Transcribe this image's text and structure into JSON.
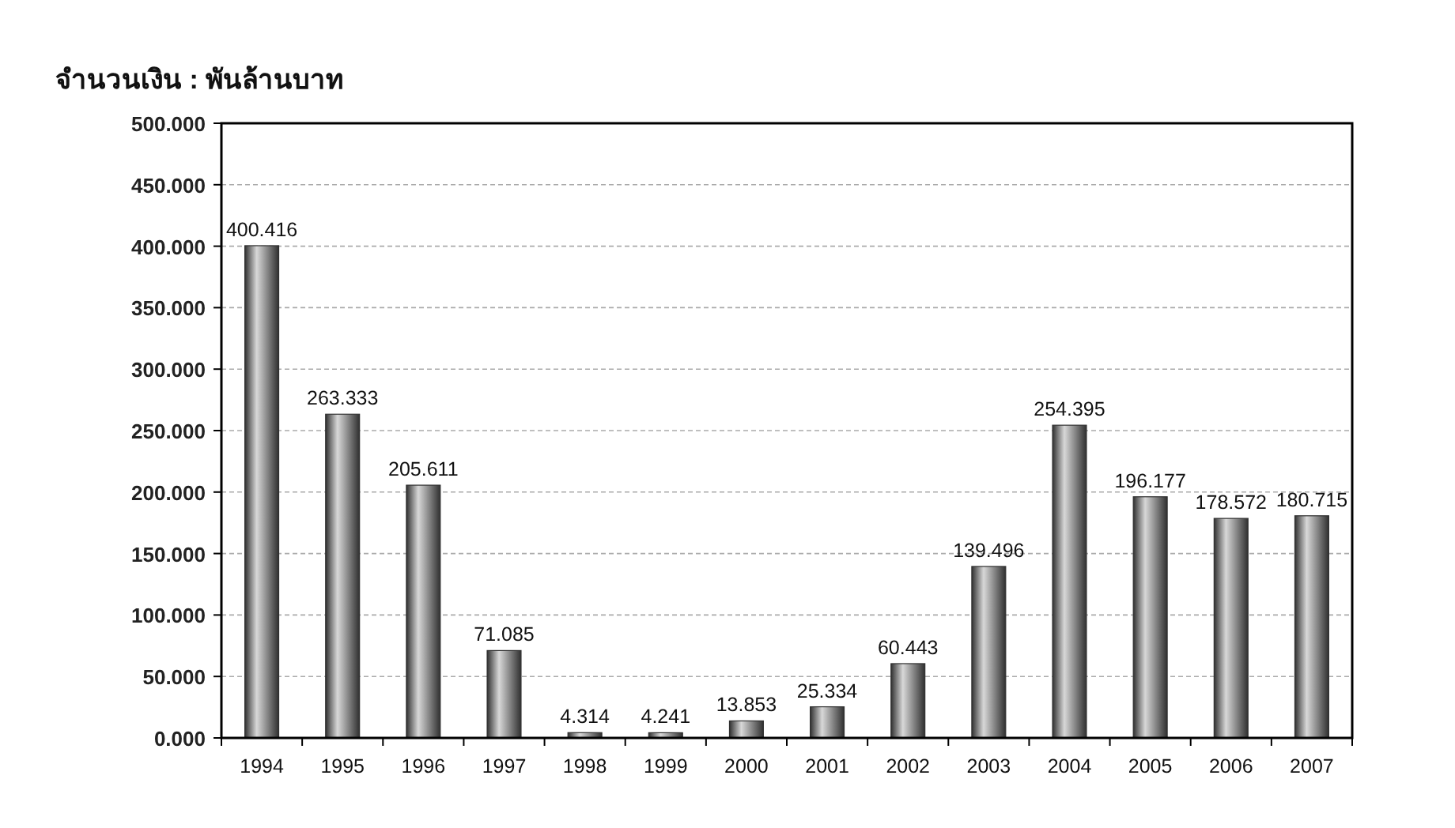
{
  "chart_data": {
    "type": "bar",
    "title": "จำนวนเงิน : พันล้านบาท",
    "categories": [
      "1994",
      "1995",
      "1996",
      "1997",
      "1998",
      "1999",
      "2000",
      "2001",
      "2002",
      "2003",
      "2004",
      "2005",
      "2006",
      "2007"
    ],
    "values": [
      400.416,
      263.333,
      205.611,
      71.085,
      4.314,
      4.241,
      13.853,
      25.334,
      60.443,
      139.496,
      254.395,
      196.177,
      178.572,
      180.715
    ],
    "color": "#303030",
    "ylim": [
      0,
      500
    ],
    "yticks": [
      {
        "value": 0,
        "label": "0.000"
      },
      {
        "value": 50,
        "label": "50.000"
      },
      {
        "value": 100,
        "label": "100.000"
      },
      {
        "value": 150,
        "label": "150.000"
      },
      {
        "value": 200,
        "label": "200.000"
      },
      {
        "value": 250,
        "label": "250.000"
      },
      {
        "value": 300,
        "label": "300.000"
      },
      {
        "value": 350,
        "label": "350.000"
      },
      {
        "value": 400,
        "label": "400.000"
      },
      {
        "value": 450,
        "label": "450.000"
      },
      {
        "value": 500,
        "label": "500.000"
      }
    ],
    "grid": "y",
    "data_labels": true
  }
}
